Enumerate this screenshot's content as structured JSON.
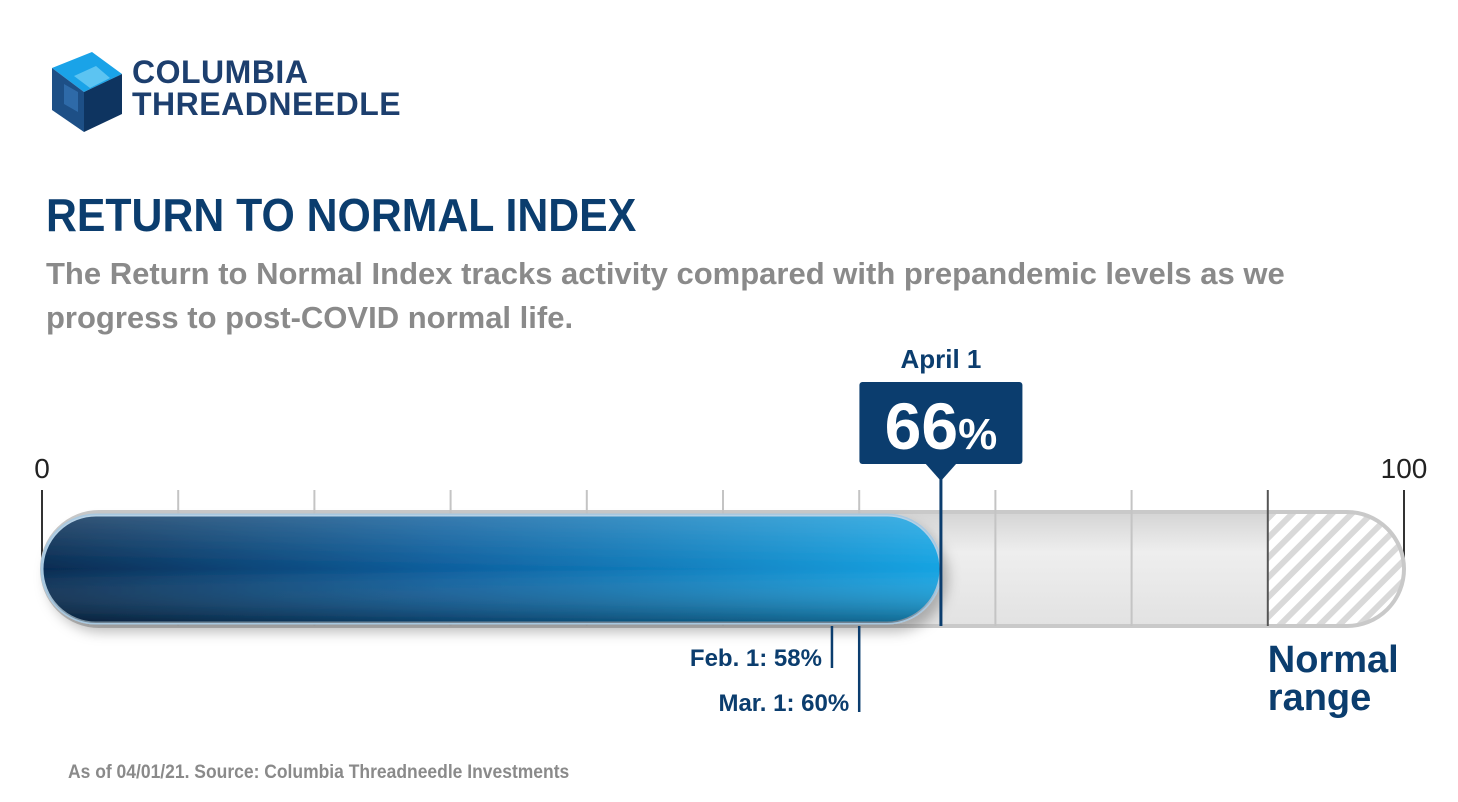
{
  "brand": {
    "logo_line1": "COLUMBIA",
    "logo_line2": "THREADNEEDLE",
    "colors": {
      "navy": "#0b3d6e",
      "blue_light": "#139ee0",
      "blue_dark": "#062b52",
      "gray": "#8a8a8a"
    }
  },
  "header": {
    "title": "RETURN TO NORMAL INDEX",
    "subtitle": "The Return to Normal Index tracks activity compared with prepandemic levels as we progress to post-COVID normal life."
  },
  "chart_data": {
    "type": "gauge-bar",
    "min": 0,
    "max": 100,
    "min_label": "0",
    "max_label": "100",
    "current": {
      "date": "April 1",
      "value": 66,
      "display_value": "66",
      "unit": "%"
    },
    "history": [
      {
        "label": "Feb. 1: 58%",
        "value": 58
      },
      {
        "label": "Mar. 1: 60%",
        "value": 60
      }
    ],
    "tick_values": [
      10,
      20,
      30,
      40,
      50,
      60,
      70,
      80,
      90
    ],
    "normal_range": {
      "start": 90,
      "end": 100,
      "label_line1": "Normal",
      "label_line2": "range"
    }
  },
  "footnote": "As of 04/01/21. Source: Columbia Threadneedle Investments"
}
